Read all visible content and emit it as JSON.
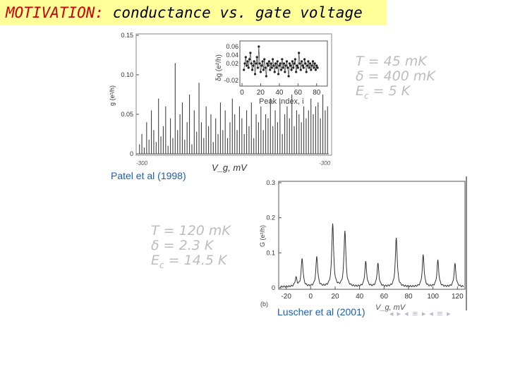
{
  "header": {
    "keyword": "MOTIVATION:",
    "rest": " conductance vs. gate voltage"
  },
  "chart_data": [
    {
      "type": "line",
      "title": "",
      "ylabel": "g (e²/h)",
      "xlabel": "V_g, mV",
      "y_ticks": [
        "0",
        "0.05",
        "0.10",
        "0.15"
      ],
      "ylim": [
        0,
        0.15
      ],
      "x_tick_left": "-300",
      "x_tick_right": "-300",
      "peaks": [
        0.012,
        0.025,
        0.008,
        0.04,
        0.018,
        0.055,
        0.03,
        0.015,
        0.07,
        0.022,
        0.035,
        0.06,
        0.01,
        0.045,
        0.02,
        0.115,
        0.03,
        0.05,
        0.065,
        0.018,
        0.04,
        0.075,
        0.012,
        0.055,
        0.028,
        0.09,
        0.04,
        0.02,
        0.06,
        0.035,
        0.05,
        0.015,
        0.045,
        0.025,
        0.065,
        0.03,
        0.055,
        0.02,
        0.04,
        0.07,
        0.05,
        0.03,
        0.06,
        0.045,
        0.025,
        0.055,
        0.035,
        0.065,
        0.02,
        0.05,
        0.04,
        0.06,
        0.03,
        0.05,
        0.045,
        0.07,
        0.035,
        0.055,
        0.04,
        0.065,
        0.025,
        0.05,
        0.06,
        0.045,
        0.075,
        0.035,
        0.055,
        0.05,
        0.04,
        0.06,
        0.045,
        0.055,
        0.07,
        0.05,
        0.06,
        0.065,
        0.045,
        0.075,
        0.055,
        0.06
      ],
      "credit": "Patel et al (1998)"
    },
    {
      "type": "scatter",
      "title": "",
      "ylabel": "δg (e²/h)",
      "xlabel": "Peak Index, i",
      "y_ticks": [
        "-0.02",
        "0.02",
        "0.04",
        "0.06"
      ],
      "x_ticks": [
        "0",
        "20",
        "40",
        "60",
        "80"
      ],
      "ylim": [
        -0.03,
        0.07
      ],
      "xlim": [
        0,
        90
      ],
      "values": [
        0.005,
        0.02,
        0.035,
        0.015,
        0.025,
        0.01,
        0.03,
        0.045,
        0.02,
        0.005,
        0.015,
        0.025,
        -0.005,
        0.02,
        0.035,
        0.01,
        0.06,
        0.02,
        0.0,
        0.015,
        0.025,
        0.005,
        0.03,
        0.01,
        -0.01,
        0.02,
        0.015,
        0.025,
        0.005,
        0.02,
        0.01,
        0.03,
        0.015,
        0.0,
        0.02,
        0.01,
        0.025,
        -0.005,
        0.015,
        0.02,
        0.005,
        0.03,
        0.01,
        0.02,
        0.0,
        0.015,
        0.025,
        0.01,
        -0.01,
        0.02,
        0.015,
        0.005,
        0.025,
        0.01,
        0.02,
        0.03,
        0.0,
        0.015,
        0.01,
        0.045,
        0.02,
        0.005,
        0.025,
        0.015,
        0.01,
        0.03,
        0.02,
        0.0,
        0.015,
        0.025,
        0.01,
        0.02,
        0.005,
        0.015,
        0.025,
        0.01,
        0.02,
        0.005,
        0.015,
        0.01
      ]
    },
    {
      "type": "line",
      "title": "",
      "ylabel": "G (e²/h)",
      "xlabel": "V_g, mV",
      "y_ticks": [
        "0",
        "0.1",
        "0.2",
        "0.3"
      ],
      "x_ticks": [
        "-20",
        "0",
        "20",
        "40",
        "60",
        "80",
        "100",
        "120"
      ],
      "ylim": [
        0,
        0.3
      ],
      "xlim": [
        -25,
        125
      ],
      "peaks": [
        {
          "x": -12,
          "y": 0.025
        },
        {
          "x": -7,
          "y": 0.08
        },
        {
          "x": 5,
          "y": 0.085
        },
        {
          "x": 18,
          "y": 0.18
        },
        {
          "x": 28,
          "y": 0.16
        },
        {
          "x": 45,
          "y": 0.07
        },
        {
          "x": 55,
          "y": 0.065
        },
        {
          "x": 70,
          "y": 0.14
        },
        {
          "x": 92,
          "y": 0.09
        },
        {
          "x": 104,
          "y": 0.075
        },
        {
          "x": 118,
          "y": 0.065
        }
      ],
      "panel_label": "(b)",
      "credit": "Luscher et al (2001)"
    }
  ],
  "params_patel": {
    "T": "T =  45 mK",
    "delta": "δ = 400 mK",
    "Ec": "E",
    "Ec_sub": "c",
    "Ec_val": "= 5 K"
  },
  "params_luscher": {
    "T": "T =  120 mK",
    "delta": "δ = 2.3 K",
    "Ec": "E",
    "Ec_sub": "c",
    "Ec_val": "= 14.5 K"
  },
  "nav": [
    "◂",
    "▸",
    "◂",
    "≡",
    "▸",
    "◂",
    "≡",
    "▸"
  ]
}
